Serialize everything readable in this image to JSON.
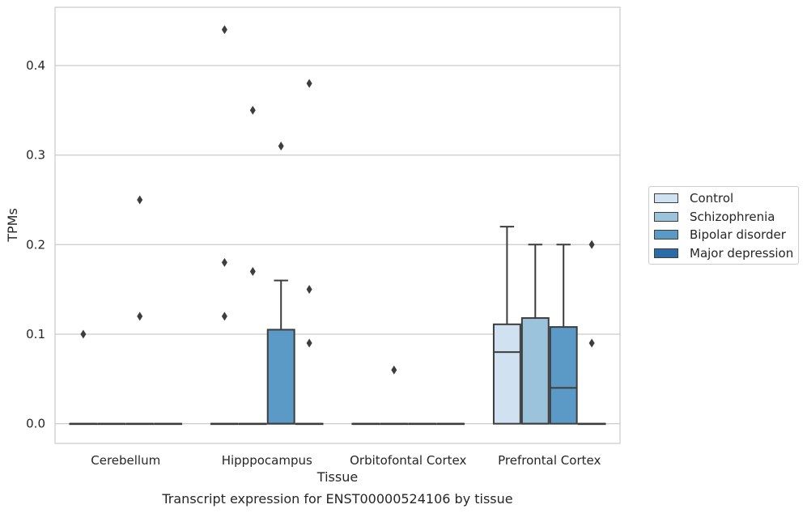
{
  "chart_data": {
    "type": "box",
    "title": "Transcript expression for ENST00000524106 by tissue",
    "xlabel": "Tissue",
    "ylabel": "TPMs",
    "ylim": [
      -0.022,
      0.465
    ],
    "yticks": [
      "0.0",
      "0.1",
      "0.2",
      "0.3",
      "0.4"
    ],
    "grid": "horizontal",
    "legend_position": "right",
    "categories": [
      "Cerebellum",
      "Hipppocampus",
      "Orbitofontal Cortex",
      "Prefrontal Cortex"
    ],
    "series": [
      {
        "name": "Control",
        "color": "#d0e1f1",
        "boxes": [
          {
            "q1": 0,
            "median": 0,
            "q3": 0,
            "whisker_low": 0,
            "whisker_high": 0,
            "outliers": [
              0.1
            ]
          },
          {
            "q1": 0,
            "median": 0,
            "q3": 0,
            "whisker_low": 0,
            "whisker_high": 0,
            "outliers": [
              0.44,
              0.18,
              0.12
            ]
          },
          {
            "q1": 0,
            "median": 0,
            "q3": 0,
            "whisker_low": 0,
            "whisker_high": 0,
            "outliers": []
          },
          {
            "q1": 0,
            "median": 0.08,
            "q3": 0.111,
            "whisker_low": 0,
            "whisker_high": 0.22,
            "outliers": []
          }
        ]
      },
      {
        "name": "Schizophrenia",
        "color": "#9cc3dc",
        "boxes": [
          {
            "q1": 0,
            "median": 0,
            "q3": 0,
            "whisker_low": 0,
            "whisker_high": 0,
            "outliers": []
          },
          {
            "q1": 0,
            "median": 0,
            "q3": 0,
            "whisker_low": 0,
            "whisker_high": 0,
            "outliers": [
              0.35,
              0.17
            ]
          },
          {
            "q1": 0,
            "median": 0,
            "q3": 0,
            "whisker_low": 0,
            "whisker_high": 0,
            "outliers": [
              0.06
            ]
          },
          {
            "q1": 0,
            "median": 0,
            "q3": 0.118,
            "whisker_low": 0,
            "whisker_high": 0.2,
            "outliers": []
          }
        ]
      },
      {
        "name": "Bipolar disorder",
        "color": "#5b9ac7",
        "boxes": [
          {
            "q1": 0,
            "median": 0,
            "q3": 0,
            "whisker_low": 0,
            "whisker_high": 0,
            "outliers": [
              0.25,
              0.12
            ]
          },
          {
            "q1": 0,
            "median": 0,
            "q3": 0.105,
            "whisker_low": 0,
            "whisker_high": 0.16,
            "outliers": [
              0.31
            ]
          },
          {
            "q1": 0,
            "median": 0,
            "q3": 0,
            "whisker_low": 0,
            "whisker_high": 0,
            "outliers": []
          },
          {
            "q1": 0,
            "median": 0.04,
            "q3": 0.108,
            "whisker_low": 0,
            "whisker_high": 0.2,
            "outliers": []
          }
        ]
      },
      {
        "name": "Major depression",
        "color": "#2b6ca7",
        "boxes": [
          {
            "q1": 0,
            "median": 0,
            "q3": 0,
            "whisker_low": 0,
            "whisker_high": 0,
            "outliers": []
          },
          {
            "q1": 0,
            "median": 0,
            "q3": 0,
            "whisker_low": 0,
            "whisker_high": 0,
            "outliers": [
              0.38,
              0.15,
              0.09
            ]
          },
          {
            "q1": 0,
            "median": 0,
            "q3": 0,
            "whisker_low": 0,
            "whisker_high": 0,
            "outliers": []
          },
          {
            "q1": 0,
            "median": 0,
            "q3": 0,
            "whisker_low": 0,
            "whisker_high": 0,
            "outliers": [
              0.2,
              0.09
            ]
          }
        ]
      }
    ]
  }
}
